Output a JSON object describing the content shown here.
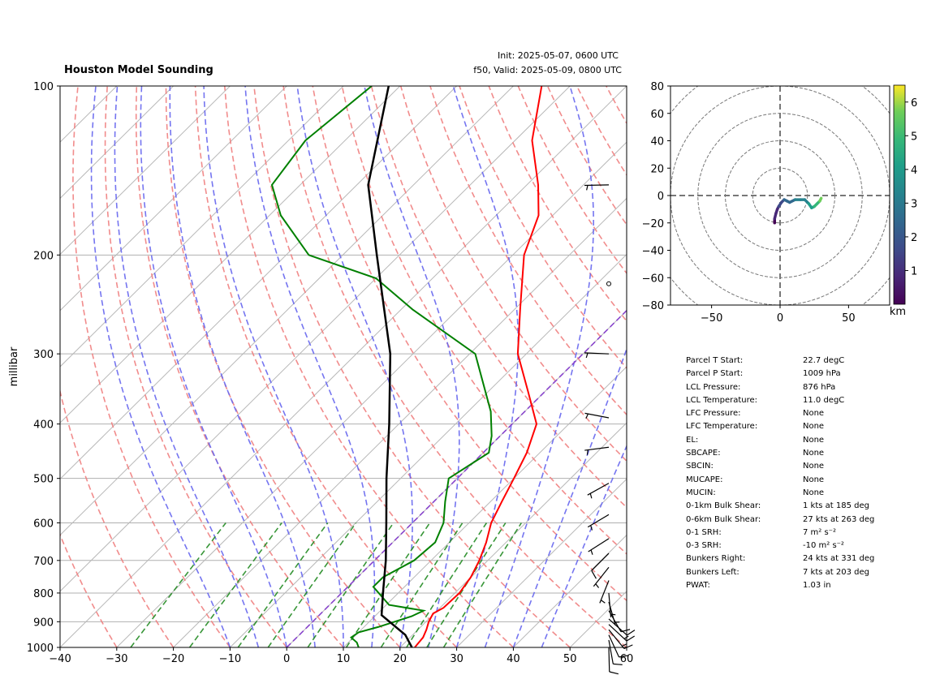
{
  "header": {
    "title": "Houston Model Sounding",
    "init": "Init: 2025-05-07, 0600 UTC",
    "valid": "f50, Valid: 2025-05-09, 0800 UTC"
  },
  "chart_data": [
    {
      "type": "skew-t",
      "ylabel": "millibar",
      "xlabel": "",
      "xlim": [
        -40,
        60
      ],
      "ylim": [
        1000,
        100
      ],
      "x_ticks": [
        -40,
        -30,
        -20,
        -10,
        0,
        10,
        20,
        30,
        40,
        50,
        60
      ],
      "y_ticks": [
        1000,
        900,
        800,
        700,
        600,
        500,
        400,
        300,
        200,
        100
      ],
      "temperature": [
        [
          1000,
          22.6
        ],
        [
          960,
          22.3
        ],
        [
          930,
          21.5
        ],
        [
          900,
          20.5
        ],
        [
          870,
          19.8
        ],
        [
          850,
          20.6
        ],
        [
          800,
          20.8
        ],
        [
          750,
          20.0
        ],
        [
          700,
          18.5
        ],
        [
          650,
          16.5
        ],
        [
          600,
          13.9
        ],
        [
          550,
          12.0
        ],
        [
          500,
          10.0
        ],
        [
          450,
          7.7
        ],
        [
          400,
          4.3
        ],
        [
          350,
          -3.0
        ],
        [
          300,
          -11.5
        ],
        [
          250,
          -19.0
        ],
        [
          200,
          -28.0
        ],
        [
          170,
          -32.5
        ],
        [
          150,
          -38.0
        ],
        [
          125,
          -47.0
        ],
        [
          100,
          -55.0
        ]
      ],
      "dewpoint": [
        [
          1000,
          12.7
        ],
        [
          980,
          11.5
        ],
        [
          960,
          9.6
        ],
        [
          940,
          10.0
        ],
        [
          920,
          12.5
        ],
        [
          880,
          16.5
        ],
        [
          860,
          17.6
        ],
        [
          840,
          10.5
        ],
        [
          780,
          4.5
        ],
        [
          750,
          4.5
        ],
        [
          700,
          7.0
        ],
        [
          650,
          7.5
        ],
        [
          600,
          5.5
        ],
        [
          550,
          2.0
        ],
        [
          500,
          -1.5
        ],
        [
          450,
          1.0
        ],
        [
          420,
          -1.5
        ],
        [
          380,
          -6.0
        ],
        [
          300,
          -19.0
        ],
        [
          250,
          -38.0
        ],
        [
          220,
          -50.0
        ],
        [
          200,
          -66.0
        ],
        [
          170,
          -78.0
        ],
        [
          150,
          -85.0
        ],
        [
          125,
          -87.0
        ],
        [
          100,
          -85.0
        ]
      ],
      "parcel": [
        [
          1009,
          22.7
        ],
        [
          950,
          18.7
        ],
        [
          876,
          11.0
        ],
        [
          800,
          7.3
        ],
        [
          700,
          2.0
        ],
        [
          600,
          -4.6
        ],
        [
          500,
          -12.5
        ],
        [
          400,
          -21.7
        ],
        [
          300,
          -34.0
        ],
        [
          250,
          -43.0
        ],
        [
          200,
          -54.0
        ],
        [
          150,
          -68.0
        ],
        [
          100,
          -82.0
        ]
      ],
      "wind_barbs": [
        [
          1000,
          -0.2,
          8.0
        ],
        [
          970,
          -1.5,
          8.3
        ],
        [
          950,
          -4.5,
          9.8
        ],
        [
          930,
          -8.6,
          10.6
        ],
        [
          910,
          -9.5,
          8.8
        ],
        [
          890,
          -9.0,
          8.0
        ],
        [
          860,
          -4.8,
          8.3
        ],
        [
          830,
          -2.0,
          7.0
        ],
        [
          800,
          -0.5,
          6.0
        ],
        [
          760,
          2.0,
          5.0
        ],
        [
          720,
          4.3,
          5.4
        ],
        [
          680,
          5.5,
          5.5
        ],
        [
          640,
          6.3,
          4.0
        ],
        [
          580,
          4.7,
          2.8
        ],
        [
          510,
          4.5,
          2.5
        ],
        [
          440,
          4.7,
          0.6
        ],
        [
          390,
          4.7,
          -0.9
        ],
        [
          300,
          4.7,
          -0.2
        ],
        [
          225,
          1.2,
          -1.6
        ],
        [
          150,
          4.8,
          0.1
        ]
      ],
      "wind_barb_units": "knots"
    },
    {
      "type": "hodograph",
      "xlim": [
        -80,
        80
      ],
      "ylim": [
        -80,
        80
      ],
      "x_ticks": [
        -50,
        0,
        50
      ],
      "y_ticks": [
        80,
        60,
        40,
        20,
        0,
        -20,
        -40,
        -60,
        -80
      ],
      "ring_spacing": 20,
      "colorbar_label": "km",
      "colorbar_ticks": [
        1,
        2,
        3,
        4,
        5,
        6
      ],
      "colorbar_range": [
        0,
        6.5
      ],
      "points": [
        [
          -4,
          -20,
          0
        ],
        [
          -4,
          -17,
          0.3
        ],
        [
          -3,
          -13,
          0.6
        ],
        [
          -2,
          -10,
          1.0
        ],
        [
          -1,
          -8,
          1.3
        ],
        [
          1,
          -5,
          1.6
        ],
        [
          3,
          -3,
          1.9
        ],
        [
          5,
          -4,
          2.2
        ],
        [
          7,
          -5,
          2.5
        ],
        [
          11,
          -3,
          2.8
        ],
        [
          15,
          -3,
          3.1
        ],
        [
          18,
          -3,
          3.4
        ],
        [
          21,
          -6,
          3.8
        ],
        [
          23,
          -9,
          4.2
        ],
        [
          25,
          -8,
          4.6
        ],
        [
          27,
          -6,
          5.0
        ],
        [
          29,
          -4,
          5.5
        ],
        [
          30,
          -2,
          6.0
        ]
      ]
    }
  ],
  "parameters": [
    {
      "label": "Parcel T Start:",
      "value": "22.7 degC"
    },
    {
      "label": "Parcel P Start:",
      "value": "1009 hPa"
    },
    {
      "label": "LCL Pressure:",
      "value": "876 hPa"
    },
    {
      "label": "LCL Temperature:",
      "value": "11.0 degC"
    },
    {
      "label": "LFC Pressure:",
      "value": "None"
    },
    {
      "label": "LFC Temperature:",
      "value": "None"
    },
    {
      "label": "EL:",
      "value": "None"
    },
    {
      "label": "SBCAPE:",
      "value": "None"
    },
    {
      "label": "SBCIN:",
      "value": "None"
    },
    {
      "label": "MUCAPE:",
      "value": "None"
    },
    {
      "label": "MUCIN:",
      "value": "None"
    },
    {
      "label": "0-1km Bulk Shear:",
      "value": "1 kts at 185 deg"
    },
    {
      "label": "0-6km Bulk Shear:",
      "value": "27 kts at 263 deg"
    },
    {
      "label": "0-1 SRH:",
      "value": "7 m² s⁻²"
    },
    {
      "label": "0-3 SRH:",
      "value": "-10 m² s⁻²"
    },
    {
      "label": "Bunkers Right:",
      "value": "24 kts at 331 deg"
    },
    {
      "label": "Bunkers Left:",
      "value": "7 kts at 203 deg"
    },
    {
      "label": "PWAT:",
      "value": "1.03 in"
    }
  ],
  "colors": {
    "temperature": "#ff0000",
    "dewpoint": "#008000",
    "parcel": "#000000",
    "dry_adiabat": "#f08080",
    "moist_adiabat": "#6666ee",
    "mixing_ratio": "#228b22",
    "isotherm_diag": "#b8b8b8",
    "isobar": "#b0b0b0",
    "zero_isotherm": "#8844cc",
    "hodo_grid": "#777777"
  }
}
